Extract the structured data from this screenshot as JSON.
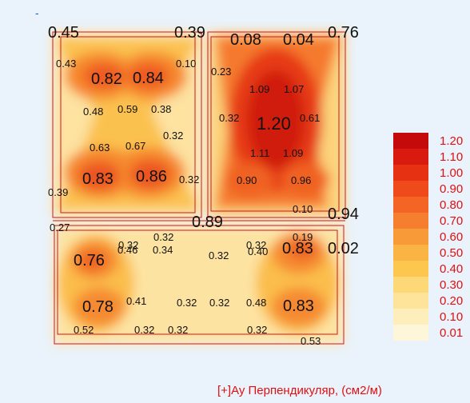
{
  "header": {
    "marker": "-"
  },
  "legend": {
    "title": "[+]Ay Перпендикуляр, (см2/м)",
    "items": [
      {
        "label": "1.20",
        "color": "#c40a0a"
      },
      {
        "label": "1.10",
        "color": "#d91a0e"
      },
      {
        "label": "1.00",
        "color": "#e63112"
      },
      {
        "label": "0.90",
        "color": "#ef4a1a"
      },
      {
        "label": "0.80",
        "color": "#f46424"
      },
      {
        "label": "0.70",
        "color": "#f57f2e"
      },
      {
        "label": "0.60",
        "color": "#f89a38"
      },
      {
        "label": "0.50",
        "color": "#fab444"
      },
      {
        "label": "0.40",
        "color": "#fcc64f"
      },
      {
        "label": "0.30",
        "color": "#fdd877"
      },
      {
        "label": "0.20",
        "color": "#fde49a"
      },
      {
        "label": "0.10",
        "color": "#fdeebb"
      },
      {
        "label": "0.01",
        "color": "#fef6d9"
      }
    ]
  },
  "values": {
    "v1": "0.45",
    "v2": "0.39",
    "v3": "0.08",
    "v4": "0.04",
    "v5": "0.76",
    "v6": "0.43",
    "v7": "0.10",
    "v8": "0.23",
    "v9": "0.82",
    "v10": "0.84",
    "v11": "1.09",
    "v12": "1.07",
    "v13": "0.48",
    "v14": "0.59",
    "v15": "0.38",
    "v16": "0.32",
    "v17": "1.20",
    "v18": "0.61",
    "v19": "0.32",
    "v20": "0.63",
    "v21": "0.67",
    "v22": "1.11",
    "v23": "1.09",
    "v24": "0.83",
    "v25": "0.86",
    "v26": "0.32",
    "v27": "0.90",
    "v28": "0.96",
    "v29": "0.39",
    "v30": "0.10",
    "v31": "0.94",
    "v32": "0.27",
    "v33": "0.89",
    "v34": "0.32",
    "v35": "0.19",
    "v36": "0.32",
    "v37": "0.32",
    "v38": "0.32",
    "v39": "0.76",
    "v40": "0.46",
    "v41": "0.34",
    "v42": "0.40",
    "v43": "0.83",
    "v44": "0.02",
    "v45": "0.78",
    "v46": "0.41",
    "v47": "0.32",
    "v48": "0.32",
    "v49": "0.48",
    "v50": "0.83",
    "v51": "0.52",
    "v52": "0.32",
    "v53": "0.32",
    "v54": "0.32",
    "v55": "0.53"
  }
}
